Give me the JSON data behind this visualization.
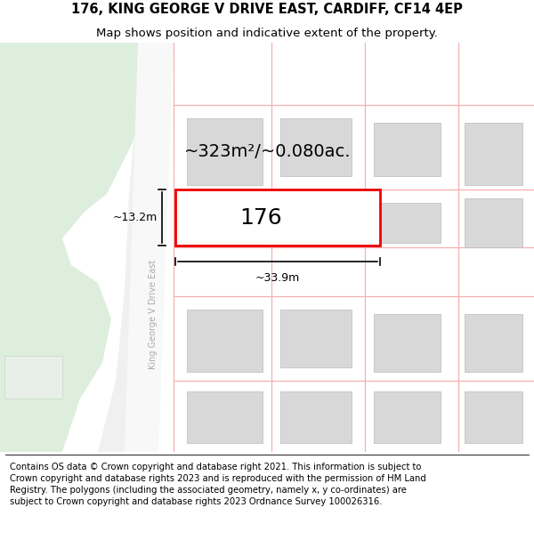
{
  "title_line1": "176, KING GEORGE V DRIVE EAST, CARDIFF, CF14 4EP",
  "title_line2": "Map shows position and indicative extent of the property.",
  "footer_text": "Contains OS data © Crown copyright and database right 2021. This information is subject to Crown copyright and database rights 2023 and is reproduced with the permission of HM Land Registry. The polygons (including the associated geometry, namely x, y co-ordinates) are subject to Crown copyright and database rights 2023 Ordnance Survey 100026316.",
  "map_bg": "#ffffff",
  "green_area_color": "#ddeedd",
  "building_fill": "#d8d8d8",
  "building_edge": "#bbbbbb",
  "property_fill": "#ffffff",
  "property_edge": "#ee0000",
  "road_line_color": "#f5b0b0",
  "street_name": "King George V Drive East",
  "plot_number": "176",
  "area_label": "~323m²/~0.080ac.",
  "width_label": "~33.9m",
  "height_label": "~13.2m",
  "title_fontsize": 10.5,
  "subtitle_fontsize": 9.5,
  "footer_fontsize": 7.2
}
